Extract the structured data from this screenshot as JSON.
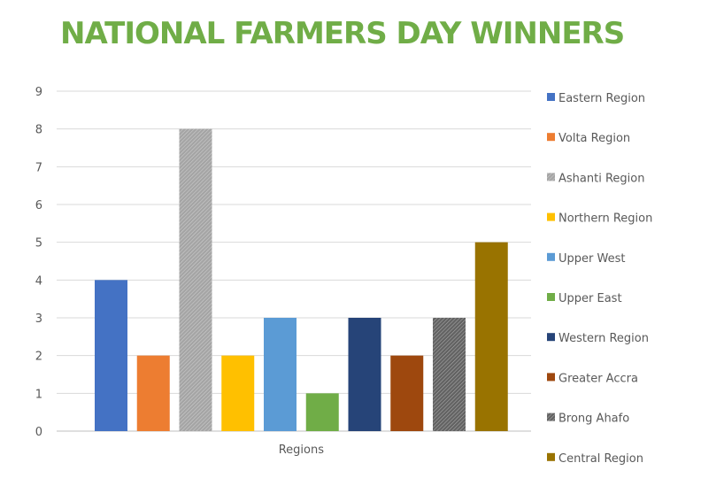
{
  "chart_data": {
    "type": "bar",
    "title": "NATIONAL FARMERS DAY WINNERS",
    "categories": [
      "Regions"
    ],
    "series": [
      {
        "name": "Eastern Region",
        "values": [
          4
        ],
        "color": "#4472c4",
        "pattern": "solid"
      },
      {
        "name": "Volta Region",
        "values": [
          2
        ],
        "color": "#ed7d31",
        "pattern": "solid"
      },
      {
        "name": "Ashanti Region",
        "values": [
          8
        ],
        "color": "#a5a5a5",
        "pattern": "hatched"
      },
      {
        "name": "Northern Region",
        "values": [
          2
        ],
        "color": "#ffc000",
        "pattern": "solid"
      },
      {
        "name": "Upper West",
        "values": [
          3
        ],
        "color": "#5b9bd5",
        "pattern": "solid"
      },
      {
        "name": "Upper East",
        "values": [
          1
        ],
        "color": "#70ad47",
        "pattern": "solid"
      },
      {
        "name": "Western Region",
        "values": [
          3
        ],
        "color": "#264478",
        "pattern": "solid"
      },
      {
        "name": "Greater Accra",
        "values": [
          2
        ],
        "color": "#9e480e",
        "pattern": "solid"
      },
      {
        "name": "Brong Ahafo",
        "values": [
          3
        ],
        "color": "#636363",
        "pattern": "hatched"
      },
      {
        "name": "Central Region",
        "values": [
          5
        ],
        "color": "#997300",
        "pattern": "solid"
      }
    ],
    "xlabel": "",
    "ylabel": "",
    "ylim": [
      0,
      9
    ],
    "yticks": [
      "0",
      "1",
      "2",
      "3",
      "4",
      "5",
      "6",
      "7",
      "8",
      "9"
    ],
    "grid": true,
    "legend_position": "right",
    "title_color": "#70ad47"
  }
}
